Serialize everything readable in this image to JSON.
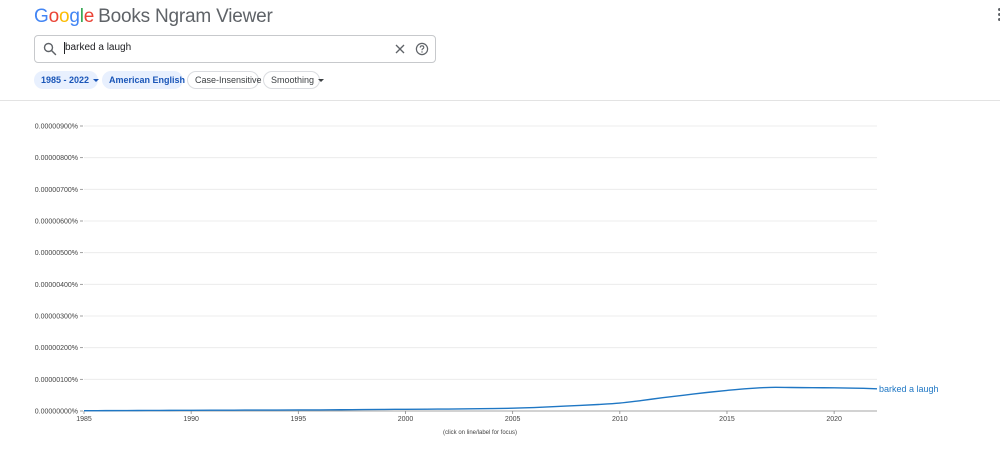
{
  "header": {
    "logo_letters": [
      "G",
      "o",
      "o",
      "g",
      "l",
      "e"
    ],
    "product_name": "Books Ngram Viewer"
  },
  "search": {
    "value": "barked a laugh",
    "icon": "search-icon",
    "clear_icon": "close-icon",
    "help_icon": "help-circle-icon"
  },
  "filters": {
    "year_range": "1985 - 2022",
    "corpus": "American English",
    "case": "Case-Insensitive",
    "smoothing": "Smoothing"
  },
  "chart_data": {
    "type": "line",
    "title": "",
    "xlabel": "",
    "ylabel": "",
    "xlim": [
      1985,
      2022
    ],
    "ylim": [
      0,
      9e-08
    ],
    "x_ticks": [
      "1985",
      "1990",
      "1995",
      "2000",
      "2005",
      "2010",
      "2015",
      "2020"
    ],
    "y_ticks": [
      "0.00000000%",
      "0.00000100%",
      "0.00000200%",
      "0.00000300%",
      "0.00000400%",
      "0.00000500%",
      "0.00000600%",
      "0.00000700%",
      "0.00000800%",
      "0.00000900%"
    ],
    "grid": true,
    "series": [
      {
        "name": "barked a laugh",
        "color": "#1f77c4",
        "x": [
          1985,
          1986,
          1987,
          1988,
          1989,
          1990,
          1991,
          1992,
          1993,
          1994,
          1995,
          1996,
          1997,
          1998,
          1999,
          2000,
          2001,
          2002,
          2003,
          2004,
          2005,
          2006,
          2007,
          2008,
          2009,
          2010,
          2011,
          2012,
          2013,
          2014,
          2015,
          2016,
          2017,
          2018,
          2019,
          2020,
          2021,
          2022
        ],
        "values": [
          1e-10,
          1.2e-10,
          1.4e-10,
          1.7e-10,
          2e-10,
          2.2e-10,
          2.5e-10,
          2.7e-10,
          2.9e-10,
          3.1e-10,
          3.3e-10,
          3.5e-10,
          3.9e-10,
          4.4e-10,
          5e-10,
          5.4e-10,
          5.8e-10,
          6.2e-10,
          6.9e-10,
          7.8e-10,
          8.8e-10,
          1.1e-09,
          1.4e-09,
          1.72e-09,
          2.05e-09,
          2.5e-09,
          3.3e-09,
          4.2e-09,
          5e-09,
          5.8e-09,
          6.5e-09,
          7.1e-09,
          7.45e-09,
          7.42e-09,
          7.35e-09,
          7.33e-09,
          7.22e-09,
          7.02e-09
        ]
      }
    ]
  },
  "chart_note": "(click on line/label for focus)"
}
